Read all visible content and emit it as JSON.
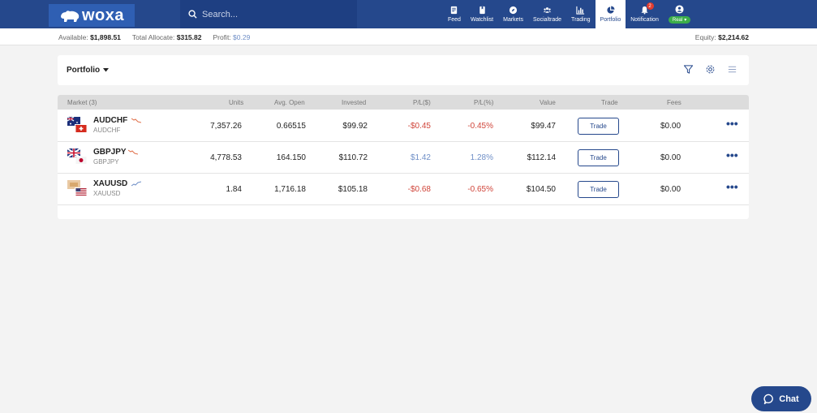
{
  "app": {
    "logo_text": "woxa"
  },
  "search": {
    "placeholder": "Search..."
  },
  "nav": {
    "items": [
      {
        "label": "Feed",
        "icon": "newspaper-icon"
      },
      {
        "label": "Watchlist",
        "icon": "bookmark-icon"
      },
      {
        "label": "Markets",
        "icon": "compass-icon"
      },
      {
        "label": "Socialtrade",
        "icon": "users-icon"
      },
      {
        "label": "Trading",
        "icon": "chart-bar-icon"
      },
      {
        "label": "Portfolio",
        "icon": "pie-chart-icon",
        "active": true
      },
      {
        "label": "Notification",
        "icon": "bell-icon",
        "badge": "2"
      }
    ],
    "user": {
      "icon": "user-icon",
      "mode": "Real"
    }
  },
  "balances": {
    "available_label": "Available:",
    "available": "$1,898.51",
    "allocate_label": "Total Allocate:",
    "allocate": "$315.82",
    "profit_label": "Profit:",
    "profit": "$0.29",
    "equity_label": "Equity:",
    "equity": "$2,214.62"
  },
  "portfolio": {
    "title": "Portfolio"
  },
  "table": {
    "headers": {
      "market": "Market (3)",
      "units": "Units",
      "avg_open": "Avg. Open",
      "invested": "Invested",
      "pl_usd": "P/L($)",
      "pl_pct": "P/L(%)",
      "value": "Value",
      "trade": "Trade",
      "fees": "Fees"
    },
    "rows": [
      {
        "symbol": "AUDCHF",
        "sub": "AUDCHF",
        "trend": "down",
        "units": "7,357.26",
        "avg_open": "0.66515",
        "invested": "$99.92",
        "pl_usd": "-$0.45",
        "pl_pct": "-0.45%",
        "value": "$99.47",
        "trade_label": "Trade",
        "fees": "$0.00"
      },
      {
        "symbol": "GBPJPY",
        "sub": "GBPJPY",
        "trend": "down",
        "units": "4,778.53",
        "avg_open": "164.150",
        "invested": "$110.72",
        "pl_usd": "$1.42",
        "pl_pct": "1.28%",
        "value": "$112.14",
        "trade_label": "Trade",
        "fees": "$0.00"
      },
      {
        "symbol": "XAUUSD",
        "sub": "XAUUSD",
        "trend": "up",
        "units": "1.84",
        "avg_open": "1,716.18",
        "invested": "$105.18",
        "pl_usd": "-$0.68",
        "pl_pct": "-0.65%",
        "value": "$104.50",
        "trade_label": "Trade",
        "fees": "$0.00"
      }
    ]
  },
  "chat": {
    "label": "Chat"
  },
  "colors": {
    "brand": "#25488c",
    "negative": "#d0453a",
    "positive": "#6f8fc7",
    "notif": "#e03c2f",
    "real": "#3cae4a"
  }
}
